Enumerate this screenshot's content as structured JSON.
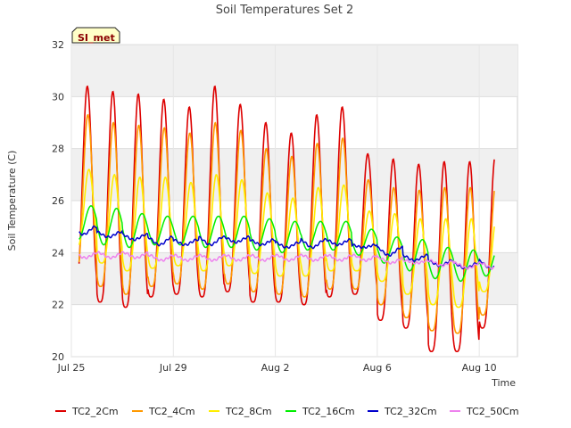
{
  "chart_data": {
    "type": "line",
    "title": "Soil Temperatures Set 2",
    "badge": "SI_met",
    "xlabel": "Time",
    "ylabel": "Soil Temperature (C)",
    "ylim": [
      20,
      32
    ],
    "yticks": [
      20,
      22,
      24,
      26,
      28,
      30,
      32
    ],
    "xlim": [
      "2023-07-25",
      "2023-08-11T12:00"
    ],
    "xticks": [
      {
        "date": "2023-07-25",
        "label": "Jul 25"
      },
      {
        "date": "2023-07-29",
        "label": "Jul 29"
      },
      {
        "date": "2023-08-02",
        "label": "Aug 2"
      },
      {
        "date": "2023-08-06",
        "label": "Aug 6"
      },
      {
        "date": "2023-08-10",
        "label": "Aug 10"
      }
    ],
    "grid": true,
    "legend_position": "bottom",
    "days": [
      "Jul 25",
      "Jul 26",
      "Jul 27",
      "Jul 28",
      "Jul 29",
      "Jul 30",
      "Jul 31",
      "Aug 1",
      "Aug 2",
      "Aug 3",
      "Aug 4",
      "Aug 5",
      "Aug 6",
      "Aug 7",
      "Aug 8",
      "Aug 9",
      "Aug 10",
      "Aug 11"
    ],
    "series": [
      {
        "name": "TC2_2Cm",
        "color": "#dd0000",
        "daily_min": [
          22.6,
          22.1,
          21.9,
          22.3,
          22.4,
          22.3,
          22.5,
          22.1,
          22.1,
          22.0,
          22.3,
          22.4,
          21.4,
          21.1,
          20.2,
          20.2,
          21.1,
          21.4
        ],
        "daily_max": [
          30.4,
          30.2,
          30.1,
          29.9,
          29.6,
          30.4,
          29.7,
          29.0,
          28.6,
          29.3,
          29.6,
          27.8,
          27.6,
          27.4,
          27.5,
          27.5,
          27.7,
          28.1
        ]
      },
      {
        "name": "TC2_4Cm",
        "color": "#ff9900",
        "daily_min": [
          23.1,
          22.7,
          22.4,
          22.7,
          22.8,
          22.6,
          22.8,
          22.5,
          22.4,
          22.3,
          22.6,
          22.6,
          22.0,
          21.5,
          21.0,
          20.9,
          21.6,
          22.0
        ],
        "daily_max": [
          29.3,
          29.0,
          28.9,
          28.8,
          28.6,
          29.0,
          28.7,
          28.0,
          27.7,
          28.2,
          28.4,
          26.8,
          26.5,
          26.4,
          26.5,
          26.5,
          26.6,
          27.1
        ]
      },
      {
        "name": "TC2_8Cm",
        "color": "#ffee00",
        "daily_min": [
          24.2,
          23.6,
          23.3,
          23.4,
          23.5,
          23.3,
          23.5,
          23.2,
          23.1,
          23.1,
          23.3,
          23.3,
          22.9,
          22.4,
          22.0,
          21.9,
          22.5,
          22.9
        ],
        "daily_max": [
          27.2,
          27.0,
          26.9,
          26.9,
          26.7,
          27.0,
          26.8,
          26.3,
          26.1,
          26.5,
          26.6,
          25.6,
          25.5,
          25.3,
          25.3,
          25.3,
          25.4,
          25.8
        ]
      },
      {
        "name": "TC2_16Cm",
        "color": "#00ee00",
        "daily_min": [
          24.5,
          24.3,
          24.2,
          24.3,
          24.3,
          24.2,
          24.2,
          24.1,
          24.0,
          24.1,
          24.1,
          23.9,
          23.6,
          23.3,
          23.0,
          22.9,
          23.1,
          23.5
        ],
        "daily_max": [
          25.8,
          25.7,
          25.5,
          25.4,
          25.4,
          25.4,
          25.4,
          25.3,
          25.2,
          25.2,
          25.2,
          24.9,
          24.6,
          24.5,
          24.2,
          24.1,
          24.2,
          24.4
        ]
      },
      {
        "name": "TC2_32Cm",
        "color": "#0000cc",
        "daily_min": [
          24.7,
          24.6,
          24.5,
          24.3,
          24.3,
          24.3,
          24.4,
          24.3,
          24.2,
          24.2,
          24.3,
          24.2,
          23.9,
          23.7,
          23.5,
          23.4,
          23.4,
          23.6
        ],
        "daily_max": [
          25.0,
          24.8,
          24.7,
          24.6,
          24.5,
          24.6,
          24.6,
          24.5,
          24.4,
          24.5,
          24.5,
          24.3,
          24.2,
          23.9,
          23.7,
          23.6,
          23.7,
          23.8
        ]
      },
      {
        "name": "TC2_50Cm",
        "color": "#ee82ee",
        "daily_min": [
          23.8,
          23.8,
          23.8,
          23.7,
          23.7,
          23.7,
          23.7,
          23.7,
          23.7,
          23.7,
          23.7,
          23.7,
          23.6,
          23.6,
          23.5,
          23.4,
          23.4,
          23.4
        ],
        "daily_max": [
          24.0,
          24.0,
          24.0,
          23.9,
          23.9,
          23.9,
          23.9,
          23.9,
          23.9,
          23.9,
          23.9,
          23.9,
          23.8,
          23.7,
          23.7,
          23.6,
          23.6,
          23.6
        ]
      }
    ]
  }
}
